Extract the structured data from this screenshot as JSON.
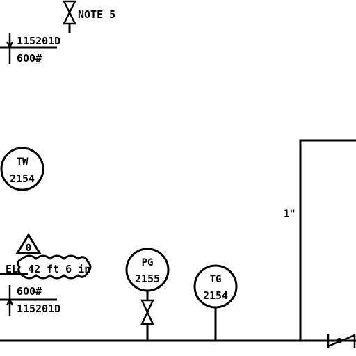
{
  "note_valve": {
    "label": "NOTE 5"
  },
  "line_top": {
    "number": "115201D",
    "rating": "600#"
  },
  "line_bottom": {
    "rating": "600#",
    "number": "115201D"
  },
  "instruments": [
    {
      "tag": "TW",
      "number": "2154"
    },
    {
      "tag": "PG",
      "number": "2155"
    },
    {
      "tag": "TG",
      "number": "2154"
    }
  ],
  "revision": {
    "mark": "0"
  },
  "elevation": {
    "prefix": "EL",
    "value": "42 ft 6 in"
  },
  "vessel_connection": {
    "label": "1\""
  },
  "colors": {
    "ink": "#000000",
    "background": "#ffffff"
  }
}
